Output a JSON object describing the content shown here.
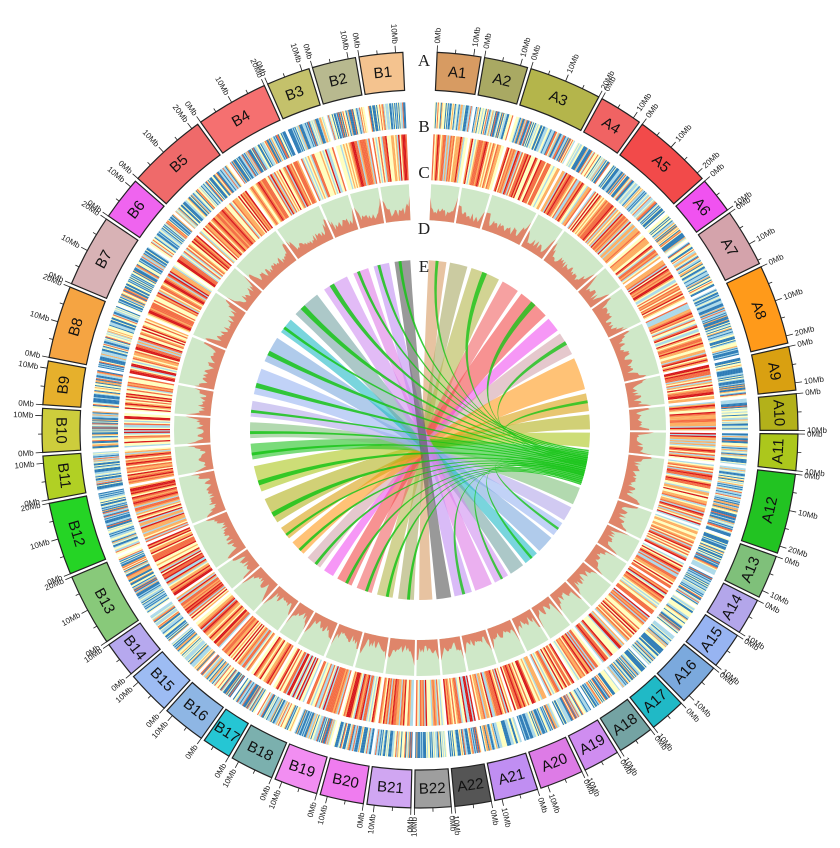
{
  "track_letters": [
    "A",
    "B",
    "C",
    "D",
    "E"
  ],
  "tick_unit": "Mb",
  "genome_a": {
    "chromosomes": [
      {
        "name": "A1",
        "length_mb": 12,
        "color": "#d79b62"
      },
      {
        "name": "A2",
        "length_mb": 12,
        "color": "#a9a963"
      },
      {
        "name": "A3",
        "length_mb": 20,
        "color": "#b4b54b"
      },
      {
        "name": "A4",
        "length_mb": 12,
        "color": "#f06363"
      },
      {
        "name": "A5",
        "length_mb": 22,
        "color": "#f24a4a"
      },
      {
        "name": "A6",
        "length_mb": 10,
        "color": "#f052f0"
      },
      {
        "name": "A7",
        "length_mb": 16,
        "color": "#d4a3ab"
      },
      {
        "name": "A8",
        "length_mb": 22,
        "color": "#ff9a1a"
      },
      {
        "name": "A9",
        "length_mb": 12,
        "color": "#d9a011"
      },
      {
        "name": "A10",
        "length_mb": 10,
        "color": "#b3b11a"
      },
      {
        "name": "A11",
        "length_mb": 10,
        "color": "#acc71c"
      },
      {
        "name": "A12",
        "length_mb": 22,
        "color": "#22c322"
      },
      {
        "name": "A13",
        "length_mb": 12,
        "color": "#7fc07a"
      },
      {
        "name": "A14",
        "length_mb": 10,
        "color": "#b3a6ea"
      },
      {
        "name": "A15",
        "length_mb": 10,
        "color": "#97b4f2"
      },
      {
        "name": "A16",
        "length_mb": 12,
        "color": "#7ba9dd"
      },
      {
        "name": "A17",
        "length_mb": 10,
        "color": "#20b9c6"
      },
      {
        "name": "A18",
        "length_mb": 10,
        "color": "#74a3a3"
      },
      {
        "name": "A19",
        "length_mb": 10,
        "color": "#cf8df0"
      },
      {
        "name": "A20",
        "length_mb": 12,
        "color": "#dd7be6"
      },
      {
        "name": "A21",
        "length_mb": 12,
        "color": "#c08ef2"
      },
      {
        "name": "A22",
        "length_mb": 10,
        "color": "#555555"
      }
    ]
  },
  "genome_b": {
    "chromosomes": [
      {
        "name": "B1",
        "length_mb": 12,
        "color": "#f4c38f"
      },
      {
        "name": "B2",
        "length_mb": 12,
        "color": "#b8b98f"
      },
      {
        "name": "B3",
        "length_mb": 12,
        "color": "#c4c16b"
      },
      {
        "name": "B4",
        "length_mb": 20,
        "color": "#f57070"
      },
      {
        "name": "B5",
        "length_mb": 22,
        "color": "#ef6a6a"
      },
      {
        "name": "B6",
        "length_mb": 12,
        "color": "#ef64ef"
      },
      {
        "name": "B7",
        "length_mb": 20,
        "color": "#d8b2b5"
      },
      {
        "name": "B8",
        "length_mb": 20,
        "color": "#f5a442"
      },
      {
        "name": "B9",
        "length_mb": 12,
        "color": "#e6b02c"
      },
      {
        "name": "B10",
        "length_mb": 12,
        "color": "#cdcd3c"
      },
      {
        "name": "B11",
        "length_mb": 12,
        "color": "#b1d024"
      },
      {
        "name": "B12",
        "length_mb": 20,
        "color": "#25d425"
      },
      {
        "name": "B13",
        "length_mb": 20,
        "color": "#88c97a"
      },
      {
        "name": "B14",
        "length_mb": 10,
        "color": "#b6a8ee"
      },
      {
        "name": "B15",
        "length_mb": 12,
        "color": "#9dbcf3"
      },
      {
        "name": "B16",
        "length_mb": 12,
        "color": "#8eb6e4"
      },
      {
        "name": "B17",
        "length_mb": 8,
        "color": "#25c6d4"
      },
      {
        "name": "B18",
        "length_mb": 12,
        "color": "#7bb0ae"
      },
      {
        "name": "B19",
        "length_mb": 12,
        "color": "#f28ef2"
      },
      {
        "name": "B20",
        "length_mb": 12,
        "color": "#ef7cef"
      },
      {
        "name": "B21",
        "length_mb": 12,
        "color": "#d0a6f2"
      },
      {
        "name": "B22",
        "length_mb": 10,
        "color": "#9e9e9e"
      }
    ]
  },
  "colors": {
    "density_track_bg": "#cfe8c8",
    "density_track_line": "#e07a5f",
    "heat_scale": [
      "#2c7bb6",
      "#abd9e9",
      "#ffffbf",
      "#fdae61",
      "#f46d43",
      "#d7191c"
    ],
    "link_dominant": "#18c418"
  }
}
